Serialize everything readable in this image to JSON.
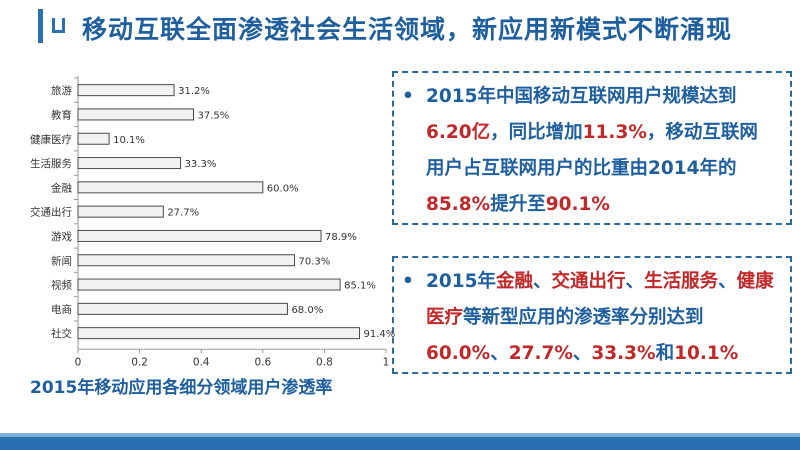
{
  "header": {
    "title": "移动互联全面渗透社会生活领域，新应用新模式不断涌现"
  },
  "chart_title": "2015年移动应用各细分领域用户渗透率",
  "chart_data": {
    "type": "bar",
    "orientation": "horizontal",
    "categories": [
      "旅游",
      "教育",
      "健康医疗",
      "生活服务",
      "金融",
      "交通出行",
      "游戏",
      "新闻",
      "视频",
      "电商",
      "社交"
    ],
    "values": [
      0.312,
      0.375,
      0.101,
      0.333,
      0.6,
      0.277,
      0.789,
      0.703,
      0.851,
      0.68,
      0.914
    ],
    "data_labels": [
      "31.2%",
      "37.5%",
      "10.1%",
      "33.3%",
      "60.0%",
      "27.7%",
      "78.9%",
      "70.3%",
      "85.1%",
      "68.0%",
      "91.4%"
    ],
    "xlim": [
      0,
      1
    ],
    "xticks": [
      "0",
      "0.2",
      "0.4",
      "0.6",
      "0.8",
      "1"
    ],
    "title": "",
    "xlabel": "",
    "ylabel": "",
    "grid": false,
    "bar_fill": "#f2f2f2",
    "bar_stroke": "#4a4a4a"
  },
  "callouts": [
    {
      "bullet": "•",
      "segments": [
        {
          "text": "2015年中国移动互联网用户规模达到",
          "color": "blue"
        },
        {
          "text": "6.20亿",
          "color": "red"
        },
        {
          "text": "，同比增加",
          "color": "blue"
        },
        {
          "text": "11.3%",
          "color": "red"
        },
        {
          "text": "，移动互联网用户占互联网用户的比重由2014年的",
          "color": "blue"
        },
        {
          "text": "85.8%",
          "color": "red"
        },
        {
          "text": "提升至",
          "color": "blue"
        },
        {
          "text": "90.1%",
          "color": "red"
        }
      ]
    },
    {
      "bullet": "•",
      "segments": [
        {
          "text": "2015年",
          "color": "blue"
        },
        {
          "text": "金融",
          "color": "red"
        },
        {
          "text": "、",
          "color": "blue"
        },
        {
          "text": "交通出行",
          "color": "red"
        },
        {
          "text": "、",
          "color": "blue"
        },
        {
          "text": "生活服务",
          "color": "red"
        },
        {
          "text": "、",
          "color": "blue"
        },
        {
          "text": "健康医疗",
          "color": "red"
        },
        {
          "text": "等新型应用的渗透率分别达到",
          "color": "blue"
        },
        {
          "text": "60.0%",
          "color": "red"
        },
        {
          "text": "、",
          "color": "blue"
        },
        {
          "text": "27.7%",
          "color": "red"
        },
        {
          "text": "、",
          "color": "blue"
        },
        {
          "text": "33.3%",
          "color": "red"
        },
        {
          "text": "和",
          "color": "blue"
        },
        {
          "text": "10.1%",
          "color": "red"
        }
      ]
    }
  ],
  "colors": {
    "accent": "#2a6fb0",
    "title_blue": "#1f5f9e",
    "highlight_red": "#c0282a"
  }
}
